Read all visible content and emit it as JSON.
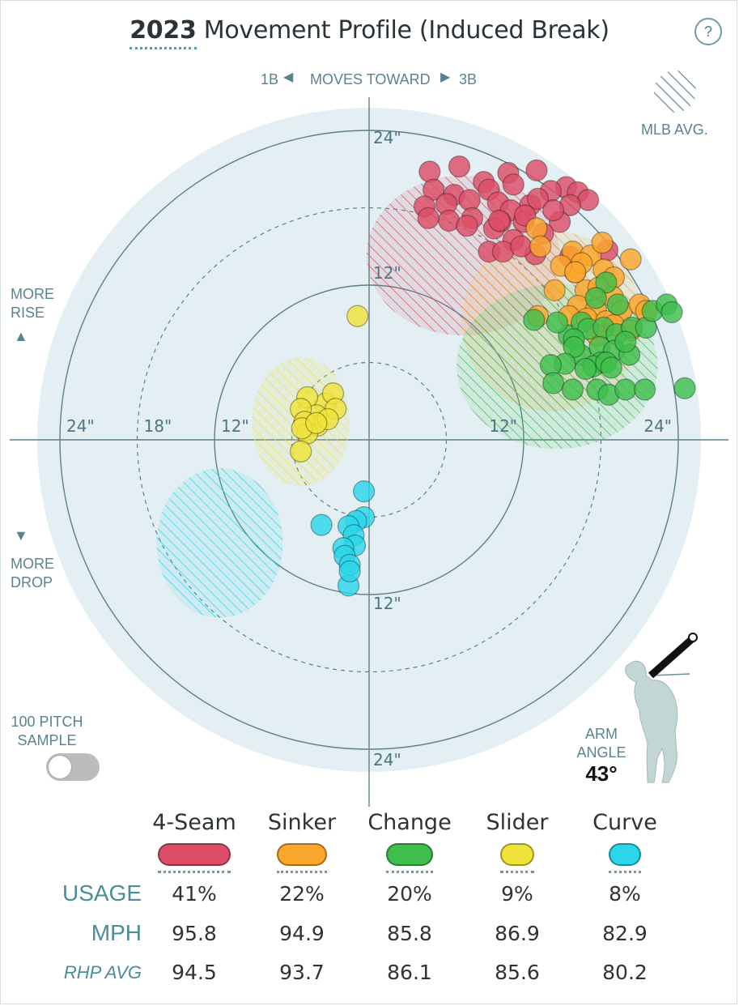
{
  "title": {
    "year": "2023",
    "text": "Movement Profile (Induced Break)"
  },
  "help_label": "?",
  "direction": {
    "left": "1B",
    "center": "MOVES TOWARD",
    "right": "3B"
  },
  "mlb_avg_label": "MLB AVG.",
  "more_rise": [
    "MORE",
    "RISE"
  ],
  "more_drop": [
    "MORE",
    "DROP"
  ],
  "sample_toggle": {
    "label": [
      "100 PITCH",
      "SAMPLE"
    ],
    "on": false
  },
  "arm_angle": {
    "label": [
      "ARM",
      "ANGLE"
    ],
    "value": "43°"
  },
  "colors": {
    "ring_bg": "#e3eff2",
    "axis": "#5e7f8b",
    "4-Seam": "#dc4e68",
    "Sinker": "#fba62c",
    "Change": "#3fbe4d",
    "Slider": "#f0e33a",
    "Curve": "#2bd5ea"
  },
  "chart_data": {
    "type": "scatter",
    "units": "inches",
    "xlim": [
      -24,
      24
    ],
    "ylim": [
      -24,
      24
    ],
    "rings": [
      6,
      12,
      18,
      24
    ],
    "tick_labels": {
      "top": "24\"",
      "upper": "12\"",
      "lower": "12\"",
      "bottom": "24\"",
      "left_outer": "24\"",
      "left_mid": "18\"",
      "left_inner": "12\"",
      "right_inner": "12\"",
      "right_outer": "24\""
    },
    "series": [
      {
        "name": "4-Seam",
        "mlb_avg": {
          "x": 7.3,
          "y": 14.3,
          "rx": 7.5,
          "ry": 6.2
        },
        "points": [
          [
            4.7,
            20.8
          ],
          [
            7.0,
            21.2
          ],
          [
            5.0,
            19.4
          ],
          [
            6.6,
            19.0
          ],
          [
            8.9,
            20.0
          ],
          [
            10.8,
            20.7
          ],
          [
            13.0,
            20.9
          ],
          [
            15.3,
            19.6
          ],
          [
            14.1,
            19.3
          ],
          [
            9.3,
            19.4
          ],
          [
            11.2,
            19.8
          ],
          [
            4.3,
            18.1
          ],
          [
            6.0,
            18.3
          ],
          [
            7.8,
            18.6
          ],
          [
            10.0,
            18.4
          ],
          [
            12.5,
            18.2
          ],
          [
            16.2,
            19.2
          ],
          [
            17.0,
            18.6
          ],
          [
            15.6,
            18.2
          ],
          [
            13.1,
            18.7
          ],
          [
            11.0,
            17.8
          ],
          [
            8.0,
            17.2
          ],
          [
            10.2,
            16.9
          ],
          [
            12.0,
            16.9
          ],
          [
            14.8,
            16.9
          ],
          [
            6.2,
            17.0
          ],
          [
            4.6,
            17.2
          ],
          [
            7.6,
            16.6
          ],
          [
            9.7,
            16.4
          ],
          [
            11.2,
            15.5
          ],
          [
            13.5,
            16.0
          ],
          [
            9.3,
            14.6
          ],
          [
            10.4,
            14.6
          ],
          [
            12.9,
            14.4
          ],
          [
            15.6,
            14.2
          ],
          [
            18.5,
            14.7
          ],
          [
            10.1,
            17.0
          ],
          [
            11.8,
            15.0
          ],
          [
            14.3,
            17.8
          ],
          [
            12.1,
            17.4
          ]
        ]
      },
      {
        "name": "Sinker",
        "mlb_avg": {
          "x": 14.2,
          "y": 9.2,
          "rx": 7.0,
          "ry": 7.0
        },
        "points": [
          [
            13.1,
            9.6
          ],
          [
            14.4,
            11.6
          ],
          [
            16.0,
            13.0
          ],
          [
            15.8,
            14.6
          ],
          [
            17.2,
            14.3
          ],
          [
            16.5,
            13.7
          ],
          [
            18.2,
            13.2
          ],
          [
            19.0,
            12.6
          ],
          [
            20.3,
            14.0
          ],
          [
            16.8,
            11.6
          ],
          [
            17.8,
            11.8
          ],
          [
            18.9,
            11.1
          ],
          [
            16.2,
            10.4
          ],
          [
            17.6,
            10.1
          ],
          [
            19.6,
            10.0
          ],
          [
            21.0,
            10.5
          ],
          [
            15.5,
            9.6
          ],
          [
            16.9,
            9.4
          ],
          [
            18.4,
            9.2
          ],
          [
            21.5,
            10.0
          ],
          [
            19.0,
            8.9
          ],
          [
            20.3,
            8.5
          ],
          [
            17.7,
            8.1
          ],
          [
            13.0,
            16.4
          ],
          [
            18.1,
            15.3
          ],
          [
            13.3,
            15.0
          ],
          [
            14.9,
            13.5
          ],
          [
            16.0,
            13.0
          ]
        ]
      },
      {
        "name": "Change",
        "mlb_avg": {
          "x": 14.6,
          "y": 5.7,
          "rx": 7.8,
          "ry": 6.4
        },
        "points": [
          [
            15.5,
            8.1
          ],
          [
            16.5,
            9.1
          ],
          [
            17.0,
            8.6
          ],
          [
            18.2,
            8.7
          ],
          [
            19.2,
            8.2
          ],
          [
            20.4,
            8.7
          ],
          [
            21.5,
            8.7
          ],
          [
            22.0,
            10.0
          ],
          [
            23.1,
            10.5
          ],
          [
            23.5,
            9.9
          ],
          [
            12.8,
            9.3
          ],
          [
            14.6,
            9.1
          ],
          [
            15.9,
            7.8
          ],
          [
            16.4,
            6.6
          ],
          [
            17.9,
            7.2
          ],
          [
            19.0,
            6.9
          ],
          [
            20.2,
            6.6
          ],
          [
            19.9,
            7.6
          ],
          [
            18.0,
            6.0
          ],
          [
            15.9,
            7.2
          ],
          [
            17.4,
            5.7
          ],
          [
            15.2,
            5.9
          ],
          [
            16.8,
            5.5
          ],
          [
            18.4,
            6.0
          ],
          [
            14.1,
            5.8
          ],
          [
            18.8,
            5.6
          ],
          [
            14.3,
            4.4
          ],
          [
            15.8,
            3.9
          ],
          [
            17.7,
            3.9
          ],
          [
            18.6,
            3.5
          ],
          [
            19.9,
            3.9
          ],
          [
            21.4,
            3.9
          ],
          [
            24.5,
            4.0
          ],
          [
            18.4,
            12.2
          ],
          [
            19.3,
            10.5
          ],
          [
            17.6,
            11.0
          ]
        ]
      },
      {
        "name": "Slider",
        "mlb_avg": {
          "x": -5.3,
          "y": 1.4,
          "rx": 3.8,
          "ry": 5.0
        },
        "points": [
          [
            -0.9,
            9.6
          ],
          [
            -3.4,
            2.8
          ],
          [
            -2.8,
            3.6
          ],
          [
            -2.6,
            2.4
          ],
          [
            -4.8,
            3.3
          ],
          [
            -4.1,
            1.9
          ],
          [
            -5.3,
            2.4
          ],
          [
            -4.0,
            1.1
          ],
          [
            -3.2,
            1.6
          ],
          [
            -5.0,
            1.4
          ],
          [
            -4.8,
            0.5
          ],
          [
            -5.2,
            0.9
          ],
          [
            -5.3,
            -0.9
          ],
          [
            -4.1,
            1.3
          ]
        ]
      },
      {
        "name": "Curve",
        "mlb_avg": {
          "x": -11.6,
          "y": -8.0,
          "rx": 4.9,
          "ry": 5.8
        },
        "points": [
          [
            -0.4,
            -4.0
          ],
          [
            -0.4,
            -6.0
          ],
          [
            -1.0,
            -6.3
          ],
          [
            -1.6,
            -6.7
          ],
          [
            -1.2,
            -7.4
          ],
          [
            -3.7,
            -6.6
          ],
          [
            -1.1,
            -8.2
          ],
          [
            -2.0,
            -8.4
          ],
          [
            -1.9,
            -9.0
          ],
          [
            -1.5,
            -9.7
          ],
          [
            -1.6,
            -11.3
          ],
          [
            -1.5,
            -10.2
          ]
        ]
      }
    ]
  },
  "table": {
    "rows": [
      {
        "label": "USAGE",
        "values": [
          "41%",
          "22%",
          "20%",
          "9%",
          "8%"
        ]
      },
      {
        "label": "MPH",
        "values": [
          "95.8",
          "94.9",
          "85.8",
          "86.9",
          "82.9"
        ]
      },
      {
        "label": "RHP AVG",
        "values": [
          "94.5",
          "93.7",
          "86.1",
          "85.6",
          "80.2"
        ]
      }
    ]
  }
}
